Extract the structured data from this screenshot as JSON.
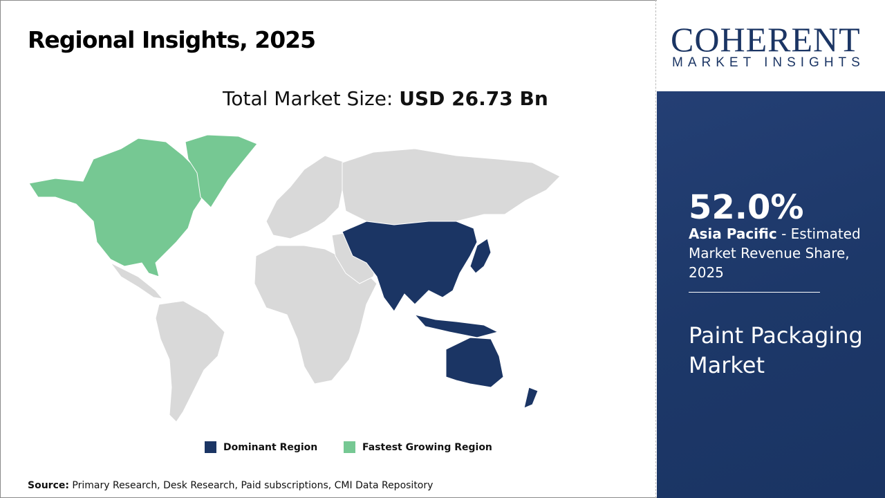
{
  "header": {
    "title": "Regional Insights, 2025",
    "total_label": "Total Market Size: ",
    "total_value": "USD 26.73 Bn"
  },
  "legend": [
    {
      "label": "Dominant Region",
      "color": "#1b3564"
    },
    {
      "label": "Fastest Growing Region",
      "color": "#76c893"
    }
  ],
  "source": {
    "label": "Source:",
    "text": " Primary Research, Desk Research, Paid subscriptions, CMI Data Repository"
  },
  "logo": {
    "main": "COHERENT",
    "sub": "MARKET INSIGHTS"
  },
  "panel": {
    "share": "52.0%",
    "region": "Asia Pacific",
    "desc": " - Estimated Market Revenue Share, 2025",
    "market": "Paint Packaging Market"
  },
  "map": {
    "dominant_region": "Asia Pacific",
    "fastest_growing_region": "North America",
    "other_color": "#d9d9d9"
  }
}
